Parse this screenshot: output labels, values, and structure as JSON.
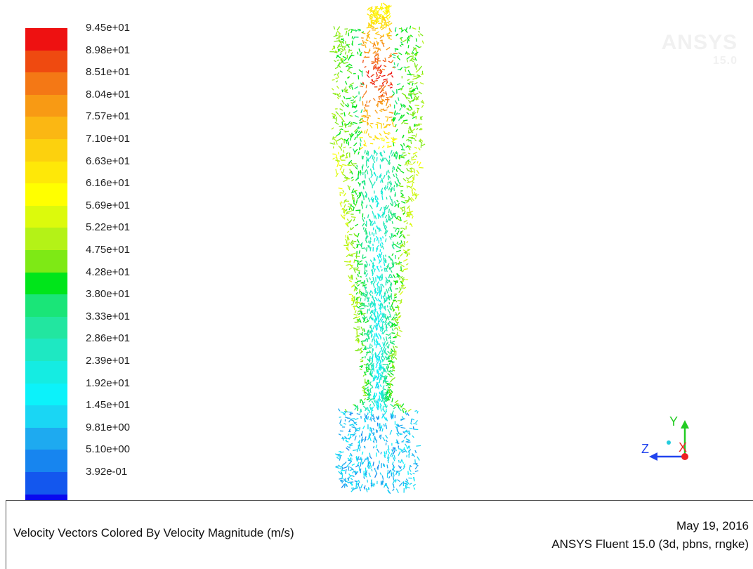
{
  "legend": {
    "colors": [
      "#ee1111",
      "#ef4a10",
      "#f47815",
      "#f89a14",
      "#fbb713",
      "#fcd10e",
      "#fee808",
      "#ffff00",
      "#dcfa0c",
      "#b4f217",
      "#7ee915",
      "#00e51a",
      "#1ae578",
      "#22e6a0",
      "#1ee8c2",
      "#15ece2",
      "#0cf2fa",
      "#1ad6f4",
      "#1eaaf0",
      "#1785ef",
      "#1357ee",
      "#0909ee"
    ],
    "labels": [
      "9.45e+01",
      "8.98e+01",
      "8.51e+01",
      "8.04e+01",
      "7.57e+01",
      "7.10e+01",
      "6.63e+01",
      "6.16e+01",
      "5.69e+01",
      "5.22e+01",
      "4.75e+01",
      "4.28e+01",
      "3.80e+01",
      "3.33e+01",
      "2.86e+01",
      "2.39e+01",
      "1.92e+01",
      "1.45e+01",
      "9.81e+00",
      "5.10e+00",
      "3.92e-01"
    ]
  },
  "watermark": {
    "brand": "ANSYS",
    "version": "15.0"
  },
  "axes_triad": {
    "y_label": "Y",
    "z_label": "Z",
    "x_label": "X",
    "y_color": "#22cc22",
    "z_color": "#2244ee",
    "x_color": "#ee2222"
  },
  "footer": {
    "title": "Velocity Vectors Colored By Velocity Magnitude (m/s)",
    "date": "May 19, 2016",
    "version": "ANSYS Fluent 15.0 (3d, pbns, rngke)"
  }
}
